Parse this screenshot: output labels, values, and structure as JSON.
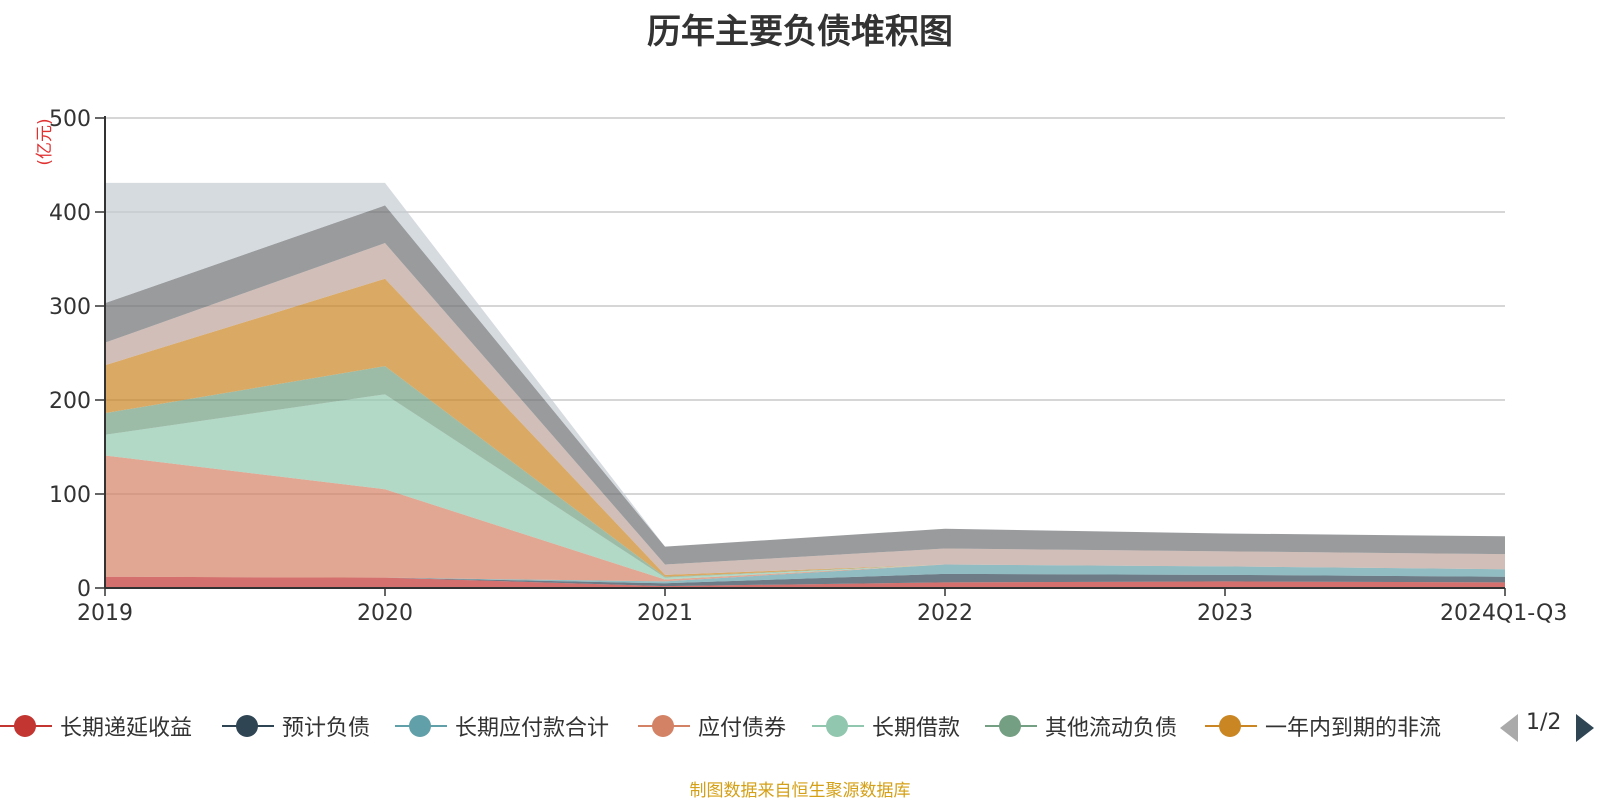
{
  "chart_data": {
    "type": "area",
    "stacked": true,
    "title": "历年主要负债堆积图",
    "unit_label": "(亿元)",
    "categories": [
      "2019",
      "2020",
      "2021",
      "2022",
      "2023",
      "2024Q1-Q3"
    ],
    "ylim": [
      0,
      500
    ],
    "yticks": [
      0,
      100,
      200,
      300,
      400,
      500
    ],
    "grid": true,
    "legend_position": "bottom",
    "series": [
      {
        "name": "长期递延收益",
        "color": "#c23531",
        "values": [
          12,
          11,
          2,
          6,
          7,
          6
        ]
      },
      {
        "name": "预计负债",
        "color": "#2f4554",
        "values": [
          0,
          0,
          3,
          9,
          7,
          6
        ]
      },
      {
        "name": "长期应付款合计",
        "color": "#61a0a8",
        "values": [
          0,
          0,
          2,
          10,
          9,
          8
        ]
      },
      {
        "name": "应付债券",
        "color": "#d48265",
        "values": [
          129,
          94,
          2,
          0,
          0,
          0
        ]
      },
      {
        "name": "长期借款",
        "color": "#91c7ae",
        "values": [
          22,
          101,
          2,
          0,
          0,
          0
        ]
      },
      {
        "name": "其他流动负债",
        "color": "#749f83",
        "values": [
          23,
          30,
          1,
          0,
          0,
          0
        ]
      },
      {
        "name": "一年内到期的非流动负债",
        "color": "#ca8622",
        "values": [
          51,
          93,
          2,
          0,
          0,
          0
        ]
      },
      {
        "name": "",
        "color": "#bda29a",
        "values": [
          24,
          38,
          11,
          17,
          16,
          16
        ]
      },
      {
        "name": "",
        "color": "#6e7074",
        "values": [
          42,
          40,
          19,
          21,
          19,
          19
        ]
      },
      {
        "name": "",
        "color": "#c4ccd3",
        "values": [
          128,
          24,
          0,
          0,
          0,
          0
        ]
      }
    ]
  },
  "legend": {
    "pager": "1/2",
    "items": [
      {
        "label": "长期递延收益",
        "color": "#c23531"
      },
      {
        "label": "预计负债",
        "color": "#2f4554"
      },
      {
        "label": "长期应付款合计",
        "color": "#61a0a8"
      },
      {
        "label": "应付债券",
        "color": "#d48265"
      },
      {
        "label": "长期借款",
        "color": "#91c7ae"
      },
      {
        "label": "其他流动负债",
        "color": "#749f83"
      },
      {
        "label": "一年内到期的非流",
        "color": "#ca8622"
      }
    ]
  },
  "source_note": "制图数据来自恒生聚源数据库"
}
